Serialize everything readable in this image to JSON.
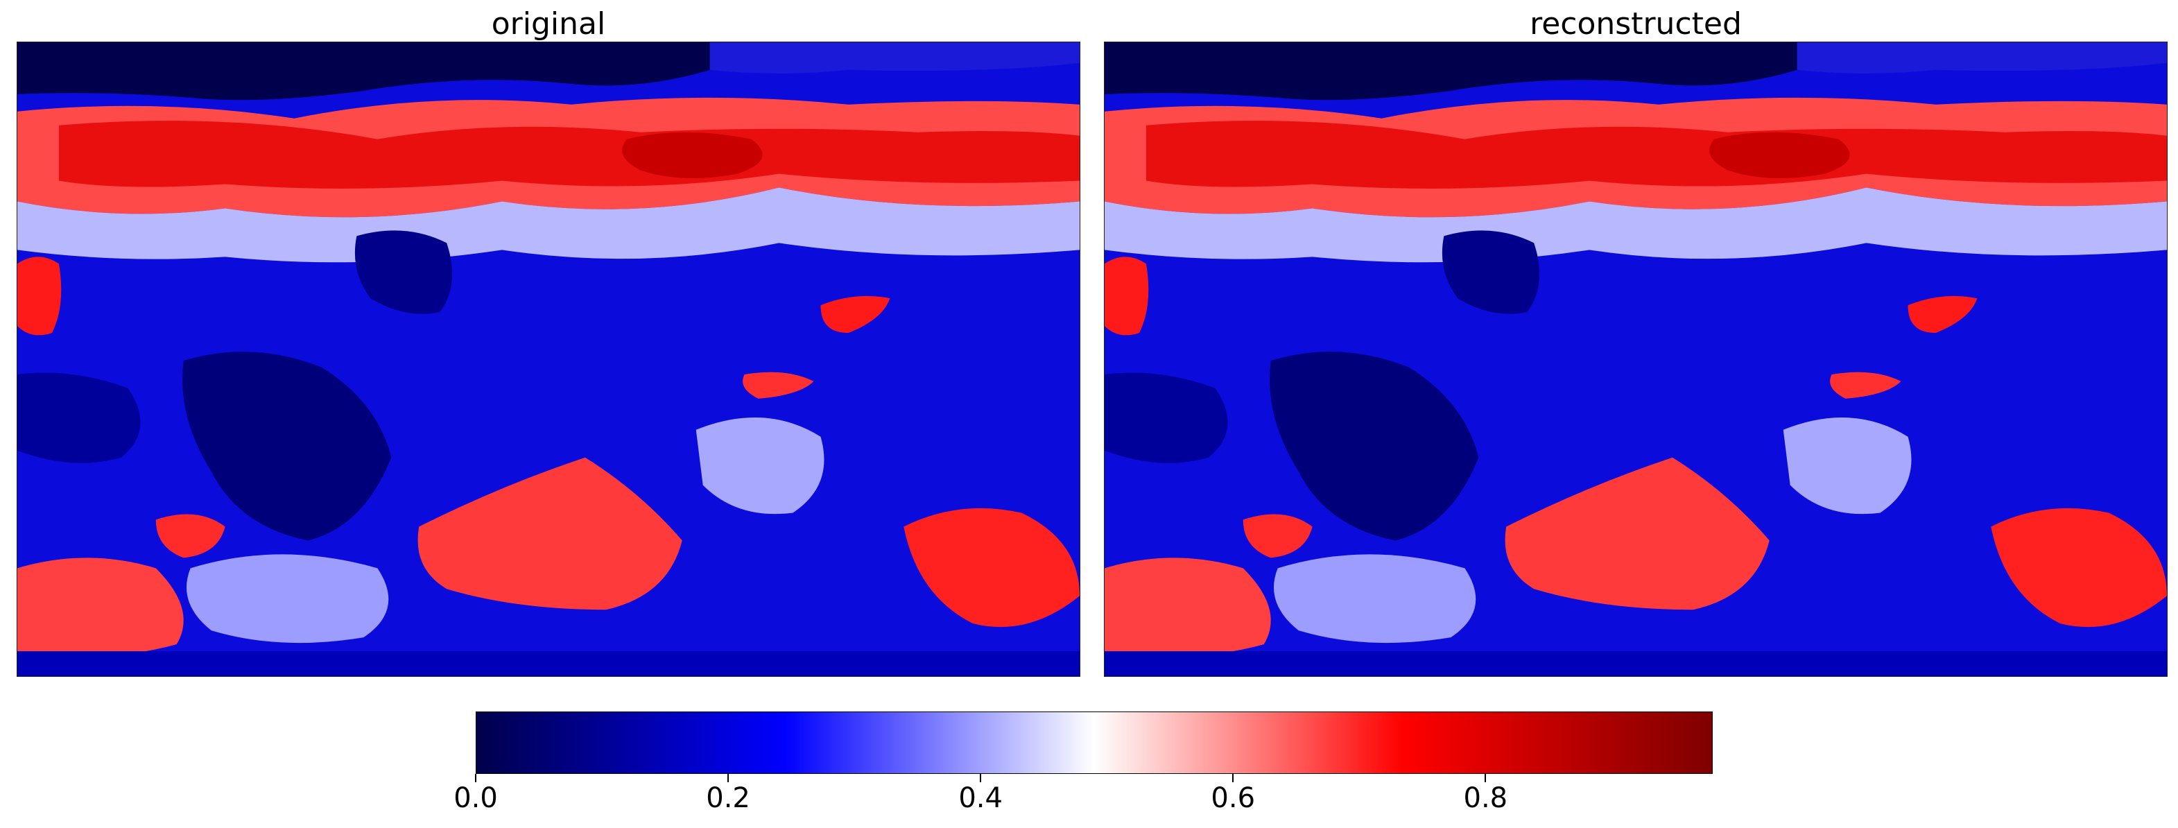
{
  "chart_data": {
    "type": "heatmap",
    "panels": [
      {
        "title": "original"
      },
      {
        "title": "reconstructed"
      }
    ],
    "colormap": "seismic",
    "colorbar": {
      "vmin": 0.0,
      "vmax": 0.98,
      "ticks": [
        0.0,
        0.2,
        0.4,
        0.6,
        0.8
      ],
      "tick_labels": [
        "0.0",
        "0.2",
        "0.4",
        "0.6",
        "0.8"
      ],
      "orientation": "horizontal",
      "placement": "bottom-center"
    },
    "colors": {
      "low": "#00004c",
      "mid_low": "#0000ff",
      "mid": "#ffffff",
      "mid_high": "#ff0000",
      "high": "#7f0000"
    }
  }
}
